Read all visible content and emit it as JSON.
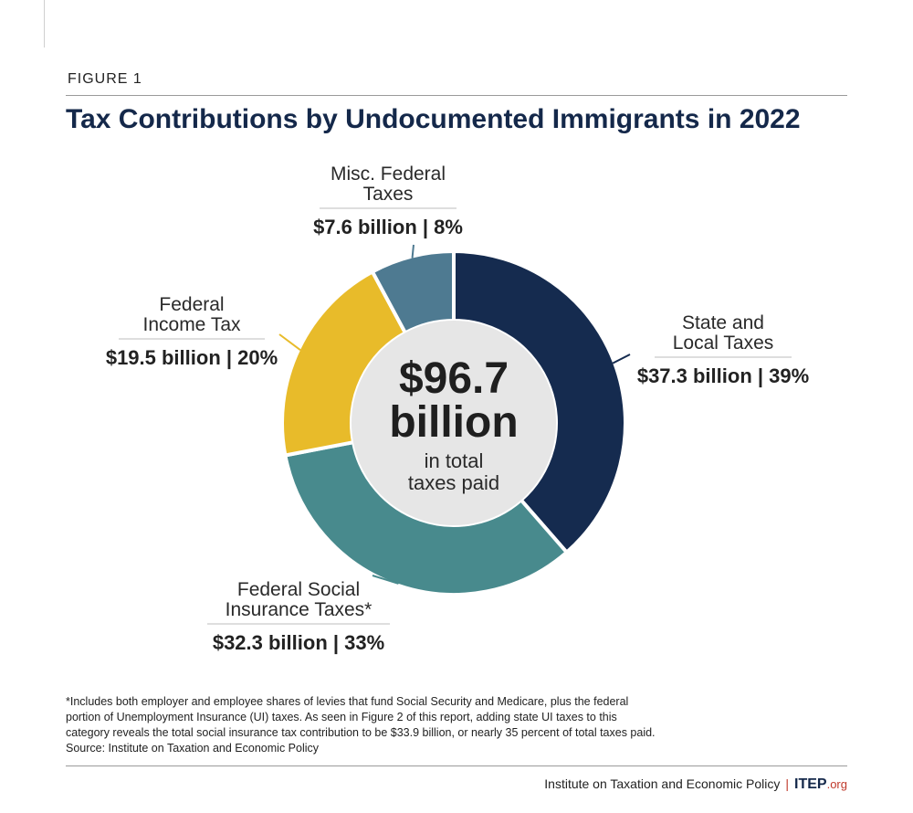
{
  "figure_label": "FIGURE 1",
  "title": "Tax Contributions by Undocumented Immigrants in 2022",
  "chart_data": {
    "type": "pie",
    "title": "Tax Contributions by Undocumented Immigrants in 2022",
    "center_value": "$96.7 billion",
    "center_line1": "$96.7",
    "center_line2": "billion",
    "center_line3": "in total",
    "center_line4": "taxes paid",
    "categories": [
      "State and Local Taxes",
      "Federal Social Insurance Taxes*",
      "Federal Income Tax",
      "Misc. Federal Taxes"
    ],
    "values": [
      37.3,
      32.3,
      19.5,
      7.6
    ],
    "percents": [
      39,
      33,
      20,
      8
    ],
    "unit": "billion",
    "slices": [
      {
        "name_lines": [
          "State and",
          "Local Taxes"
        ],
        "value_label": "$37.3 billion | 39%",
        "value": 37.3,
        "percent": 39,
        "color": "#152b4f"
      },
      {
        "name_lines": [
          "Federal Social",
          "Insurance Taxes*"
        ],
        "value_label": "$32.3 billion | 33%",
        "value": 32.3,
        "percent": 33,
        "color": "#488a8d"
      },
      {
        "name_lines": [
          "Federal",
          "Income Tax"
        ],
        "value_label": "$19.5 billion | 20%",
        "value": 19.5,
        "percent": 20,
        "color": "#e8bb2a"
      },
      {
        "name_lines": [
          "Misc. Federal",
          "Taxes"
        ],
        "value_label": "$7.6 billion | 8%",
        "value": 7.6,
        "percent": 8,
        "color": "#4e7a91"
      }
    ]
  },
  "colors": {
    "title": "#14284a",
    "center_fill": "#e6e6e6",
    "accent_red": "#c0392b"
  },
  "footnote": {
    "line1": "*Includes both employer and employee shares of levies that fund Social Security and Medicare, plus the federal",
    "line2": "portion of Unemployment Insurance (UI) taxes. As seen in Figure 2 of this report, adding state UI taxes to this",
    "line3": "category reveals the total social insurance tax contribution to be $33.9 billion, or nearly 35 percent of total taxes paid.",
    "source": "Source: Institute on Taxation and Economic Policy"
  },
  "credit": {
    "org_name": "Institute on Taxation and Economic Policy",
    "separator": "|",
    "logo_main": "ITEP",
    "logo_suffix": ".org"
  }
}
